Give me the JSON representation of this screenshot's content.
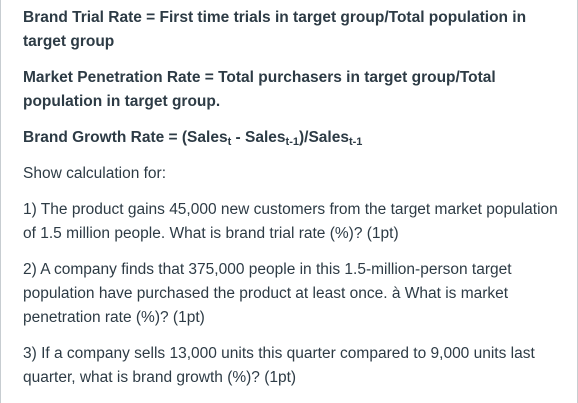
{
  "formulas": {
    "trial_rate": "Brand Trial Rate = First time trials in target group/Total population in target group",
    "penetration_rate": "Market Penetration Rate = Total purchasers in target group/Total population in target group.",
    "growth_rate": {
      "prefix": "Brand Growth Rate = (Sales",
      "sub1": "t",
      "mid": " - Sales",
      "sub2": "t-1",
      "mid2": ")/Sales",
      "sub3": "t-1"
    }
  },
  "instruction": "Show calculation for:",
  "questions": [
    "1) The product gains 45,000 new customers from the target market population of 1.5 million people. What is brand trial rate (%)? (1pt)",
    "2) A company finds that 375,000 people in this 1.5-million-person target population have purchased the product at least once. à What is market penetration rate (%)? (1pt)",
    "3) If a company sells 13,000 units this quarter compared to 9,000 units last quarter, what is brand growth (%)? (1pt)"
  ]
}
